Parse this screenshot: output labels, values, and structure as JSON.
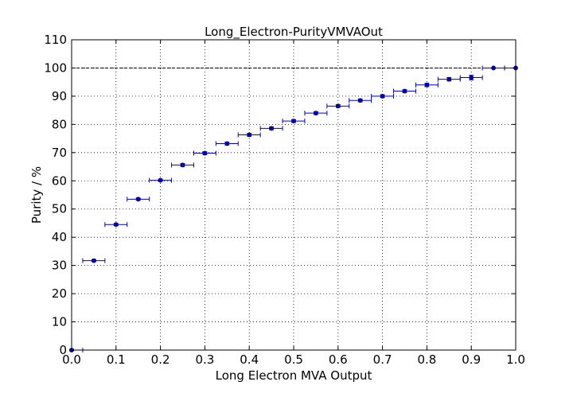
{
  "chart_data": {
    "type": "scatter",
    "title": "Long_Electron-PurityVMVAOut",
    "xlabel": "Long Electron MVA Output",
    "ylabel": "Purity / %",
    "xlim": [
      0.0,
      1.0
    ],
    "ylim": [
      0,
      110
    ],
    "xticks": [
      "0.0",
      "0.1",
      "0.2",
      "0.3",
      "0.4",
      "0.5",
      "0.6",
      "0.7",
      "0.8",
      "0.9",
      "1.0"
    ],
    "yticks": [
      "0",
      "10",
      "20",
      "30",
      "40",
      "50",
      "60",
      "70",
      "80",
      "90",
      "100",
      "110"
    ],
    "grid": true,
    "reference_line": {
      "y": 100,
      "style": "dashed"
    },
    "marker_color": "#0000cc",
    "series": [
      {
        "x": [
          0.0,
          0.05,
          0.1,
          0.15,
          0.2,
          0.25,
          0.3,
          0.35,
          0.4,
          0.45,
          0.5,
          0.55,
          0.6,
          0.65,
          0.7,
          0.75,
          0.8,
          0.85,
          0.9,
          0.95,
          1.0
        ],
        "y": [
          0.0,
          31.7,
          44.5,
          53.5,
          60.2,
          65.6,
          69.8,
          73.2,
          76.3,
          78.6,
          81.2,
          84.0,
          86.5,
          88.5,
          90.0,
          91.8,
          94.0,
          96.0,
          96.6,
          100.0,
          100.0
        ],
        "xerr": 0.025,
        "yerr": [
          0.3,
          0.4,
          0.4,
          0.4,
          0.4,
          0.5,
          0.5,
          0.5,
          0.5,
          0.5,
          0.5,
          0.5,
          0.5,
          0.5,
          0.5,
          0.5,
          0.6,
          0.6,
          0.8,
          0.0,
          0.0
        ]
      }
    ]
  }
}
